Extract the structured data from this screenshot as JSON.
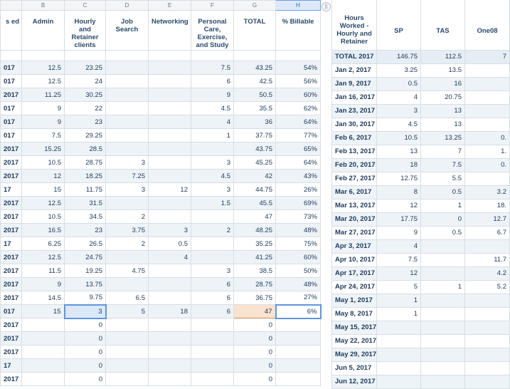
{
  "left": {
    "col_letters": [
      "",
      "B",
      "C",
      "D",
      "E",
      "F",
      "G",
      "H"
    ],
    "headers": [
      "s ed",
      "Admin",
      "Hourly and Retainer clients",
      "Job Search",
      "Networking",
      "Personal Care, Exercise, and Study",
      "TOTAL",
      "% Billable"
    ],
    "rows": [
      [
        "017",
        "12.5",
        "23.25",
        "",
        "",
        "7.5",
        "43.25",
        "54%"
      ],
      [
        "017",
        "12.5",
        "24",
        "",
        "",
        "6",
        "42.5",
        "56%"
      ],
      [
        "2017",
        "11.25",
        "30.25",
        "",
        "",
        "9",
        "50.5",
        "60%"
      ],
      [
        "017",
        "9",
        "22",
        "",
        "",
        "4.5",
        "35.5",
        "62%"
      ],
      [
        "017",
        "9",
        "23",
        "",
        "",
        "4",
        "36",
        "64%"
      ],
      [
        "017",
        "7.5",
        "29.25",
        "",
        "",
        "1",
        "37.75",
        "77%"
      ],
      [
        "2017",
        "15.25",
        "28.5",
        "",
        "",
        "",
        "43.75",
        "65%"
      ],
      [
        "2017",
        "10.5",
        "28.75",
        "3",
        "",
        "3",
        "45.25",
        "64%"
      ],
      [
        "2017",
        "12",
        "18.25",
        "7.25",
        "",
        "4.5",
        "42",
        "43%"
      ],
      [
        "17",
        "15",
        "11.75",
        "3",
        "12",
        "3",
        "44.75",
        "26%"
      ],
      [
        "2017",
        "12.5",
        "31.5",
        "",
        "",
        "1.5",
        "45.5",
        "69%"
      ],
      [
        "2017",
        "10.5",
        "34.5",
        "2",
        "",
        "",
        "47",
        "73%"
      ],
      [
        "2017",
        "16.5",
        "23",
        "3.75",
        "3",
        "2",
        "48.25",
        "48%"
      ],
      [
        "17",
        "6.25",
        "26.5",
        "2",
        "0.5",
        "",
        "35.25",
        "75%"
      ],
      [
        "2017",
        "12.5",
        "24.75",
        "",
        "4",
        "",
        "41.25",
        "60%"
      ],
      [
        "2017",
        "11.5",
        "19.25",
        "4.75",
        "",
        "3",
        "38.5",
        "50%"
      ],
      [
        "2017",
        "9",
        "13.75",
        "",
        "",
        "6",
        "28.75",
        "48%"
      ],
      [
        "2017",
        "14.5",
        "9.75",
        "6.5",
        "",
        "6",
        "36.75",
        "27%"
      ],
      [
        "017",
        "15",
        "3",
        "5",
        "18",
        "6",
        "47",
        "6%"
      ],
      [
        "2017",
        "",
        "0",
        "",
        "",
        "",
        "0",
        ""
      ],
      [
        "2017",
        "",
        "0",
        "",
        "",
        "",
        "0",
        ""
      ],
      [
        "2017",
        "",
        "0",
        "",
        "",
        "",
        "0",
        ""
      ],
      [
        "17",
        "",
        "0",
        "",
        "",
        "",
        "0",
        ""
      ],
      [
        "2017",
        "",
        "0",
        "",
        "",
        "",
        "0",
        ""
      ]
    ]
  },
  "right": {
    "headers": [
      "Hours Worked - Hourly and Retainer",
      "SP",
      "TAS",
      "One08"
    ],
    "rows": [
      [
        "TOTAL 2017",
        "146.75",
        "112.5",
        "7"
      ],
      [
        "Jan 2, 2017",
        "3.25",
        "13.5",
        ""
      ],
      [
        "Jan 9, 2017",
        "0.5",
        "16",
        ""
      ],
      [
        "Jan 16, 2017",
        "4",
        "20.75",
        ""
      ],
      [
        "Jan 23, 2017",
        "3",
        "13",
        ""
      ],
      [
        "Jan 30, 2017",
        "4.5",
        "13",
        ""
      ],
      [
        "Feb 6, 2017",
        "10.5",
        "13.25",
        "0."
      ],
      [
        "Feb 13, 2017",
        "13",
        "7",
        "1."
      ],
      [
        "Feb 20, 2017",
        "18",
        "7.5",
        "0."
      ],
      [
        "Feb 27, 2017",
        "12.75",
        "5.5",
        ""
      ],
      [
        "Mar 6, 2017",
        "8",
        "0.5",
        "3.2"
      ],
      [
        "Mar 13, 2017",
        "12",
        "1",
        "18."
      ],
      [
        "Mar 20, 2017",
        "17.75",
        "0",
        "12.7"
      ],
      [
        "Mar 27, 2017",
        "9",
        "0.5",
        "6.7"
      ],
      [
        "Apr 3, 2017",
        "4",
        "",
        ""
      ],
      [
        "Apr 10, 2017",
        "7.5",
        "",
        "11.7"
      ],
      [
        "Apr 17, 2017",
        "12",
        "",
        "4.2"
      ],
      [
        "Apr 24, 2017",
        "5",
        "1",
        "5.2"
      ],
      [
        "May 1, 2017",
        "1",
        "",
        ""
      ],
      [
        "May 8, 2017",
        "1",
        "",
        ""
      ],
      [
        "May 15, 2017",
        "",
        "",
        ""
      ],
      [
        "May 22, 2017",
        "",
        "",
        ""
      ],
      [
        "May 29, 2017",
        "",
        "",
        ""
      ],
      [
        "Jun 5, 2017",
        "",
        "",
        ""
      ],
      [
        "Jun 12, 2017",
        "",
        "",
        ""
      ]
    ]
  },
  "controls": {
    "freeze_glyph": "||"
  }
}
